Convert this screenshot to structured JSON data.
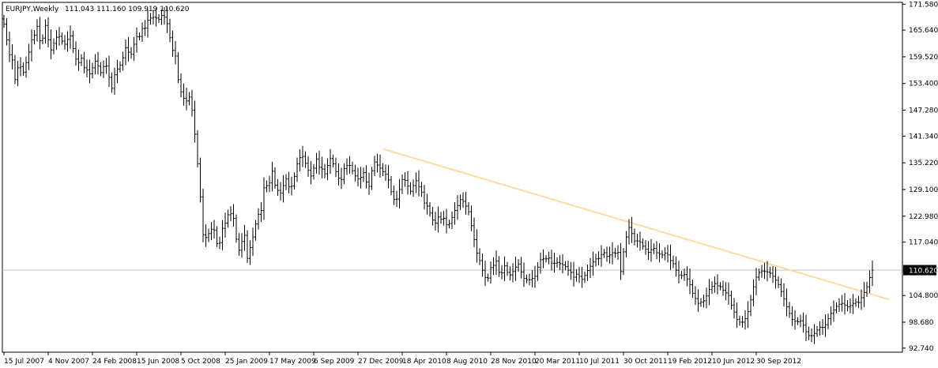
{
  "chart_data": {
    "type": "bar",
    "symbol_label": "EURJPY,Weekly",
    "ohlc_label": "111.043 111.160 109.919 110.620",
    "current_price": 110.62,
    "current_price_label": "110.620",
    "ylim": [
      91.8,
      172.0
    ],
    "y_ticks": [
      "171.580",
      "165.640",
      "159.520",
      "153.400",
      "147.280",
      "141.340",
      "135.220",
      "129.100",
      "122.980",
      "117.040",
      "110.620",
      "104.800",
      "98.680",
      "92.740"
    ],
    "x_ticks": [
      "15 Jul 2007",
      "4 Nov 2007",
      "24 Feb 2008",
      "15 Jun 2008",
      "5 Oct 2008",
      "25 Jan 2009",
      "17 May 2009",
      "6 Sep 2009",
      "27 Dec 2009",
      "18 Apr 2010",
      "8 Aug 2010",
      "28 Nov 2010",
      "20 Mar 2011",
      "10 Jul 2011",
      "30 Oct 2011",
      "19 Feb 2012",
      "10 Jun 2012",
      "30 Sep 2012"
    ],
    "trendline": {
      "start": {
        "bar": 137,
        "price": 138.4
      },
      "end": {
        "bar": 320,
        "price": 103.9
      }
    },
    "closes": [
      167.0,
      163.4,
      160.0,
      158.8,
      154.3,
      157.0,
      157.3,
      156.0,
      158.2,
      160.6,
      163.4,
      164.5,
      166.5,
      163.2,
      163.8,
      166.7,
      163.4,
      161.1,
      162.6,
      164.0,
      164.2,
      163.1,
      162.4,
      163.5,
      164.3,
      161.4,
      159.0,
      158.2,
      159.2,
      157.0,
      156.5,
      155.6,
      157.0,
      158.5,
      157.4,
      155.9,
      157.3,
      157.4,
      154.8,
      152.3,
      155.4,
      156.7,
      157.6,
      159.3,
      161.6,
      160.6,
      160.1,
      162.4,
      164.1,
      164.2,
      166.0,
      166.1,
      167.9,
      168.4,
      168.6,
      168.4,
      168.1,
      169.0,
      168.6,
      167.1,
      163.9,
      161.0,
      159.7,
      154.3,
      151.5,
      150.0,
      149.4,
      150.3,
      147.3,
      141.8,
      135.0,
      127.4,
      118.7,
      118.1,
      119.0,
      120.0,
      119.8,
      116.7,
      116.9,
      120.2,
      121.4,
      123.3,
      123.6,
      122.5,
      117.7,
      115.2,
      117.2,
      118.6,
      113.3,
      115.8,
      118.2,
      121.2,
      123.4,
      124.3,
      129.5,
      130.0,
      130.6,
      133.3,
      130.1,
      128.9,
      128.3,
      130.0,
      131.5,
      129.7,
      129.9,
      132.1,
      135.0,
      136.4,
      136.7,
      135.1,
      133.5,
      132.2,
      134.0,
      136.1,
      134.2,
      133.8,
      132.7,
      134.6,
      136.2,
      135.0,
      133.2,
      131.7,
      131.4,
      133.9,
      134.6,
      134.6,
      133.4,
      132.2,
      131.5,
      131.9,
      133.0,
      130.8,
      129.8,
      133.4,
      135.4,
      134.7,
      134.0,
      133.2,
      132.6,
      131.3,
      128.6,
      126.8,
      126.9,
      129.1,
      131.4,
      131.2,
      129.9,
      128.7,
      130.0,
      131.1,
      129.7,
      128.5,
      126.0,
      125.3,
      123.7,
      122.1,
      121.4,
      122.8,
      122.3,
      122.5,
      121.0,
      121.3,
      122.7,
      124.3,
      125.4,
      126.8,
      126.4,
      125.3,
      124.0,
      120.8,
      117.6,
      114.5,
      112.8,
      110.6,
      108.9,
      108.8,
      111.2,
      111.7,
      112.7,
      110.1,
      110.0,
      111.6,
      110.1,
      109.5,
      110.3,
      111.3,
      112.0,
      110.2,
      108.7,
      108.4,
      108.4,
      108.7,
      109.2,
      111.3,
      113.0,
      113.2,
      113.2,
      113.4,
      112.2,
      112.2,
      112.4,
      112.1,
      111.8,
      111.4,
      110.6,
      110.1,
      109.0,
      109.7,
      109.2,
      108.5,
      109.4,
      110.5,
      111.5,
      112.5,
      113.2,
      113.3,
      114.2,
      114.6,
      113.8,
      114.1,
      114.6,
      114.5,
      114.7,
      110.3,
      114.8,
      118.2,
      120.4,
      119.0,
      117.3,
      117.3,
      117.0,
      116.1,
      115.4,
      114.7,
      115.3,
      115.6,
      114.6,
      114.3,
      114.1,
      114.5,
      114.1,
      112.8,
      112.1,
      110.6,
      109.5,
      109.4,
      109.6,
      108.6,
      107.3,
      105.3,
      104.1,
      103.0,
      103.3,
      103.6,
      104.7,
      106.2,
      106.9,
      107.5,
      107.0,
      106.8,
      106.0,
      105.4,
      104.8,
      102.6,
      101.0,
      99.3,
      98.7,
      98.7,
      99.5,
      101.1,
      103.8,
      106.8,
      109.0,
      110.1,
      110.4,
      110.3,
      110.2,
      109.9,
      109.2,
      108.3,
      107.3,
      105.7,
      104.0,
      102.2,
      100.7,
      99.3,
      98.9,
      98.8,
      99.0,
      98.0,
      96.5,
      95.6,
      95.6,
      96.1,
      96.9,
      97.5,
      97.5,
      98.1,
      99.5,
      100.7,
      101.5,
      102.3,
      102.8,
      103.0,
      102.6,
      102.2,
      102.5,
      103.0,
      103.3,
      103.2,
      104.3,
      105.5,
      106.8,
      108.9,
      110.62
    ]
  }
}
